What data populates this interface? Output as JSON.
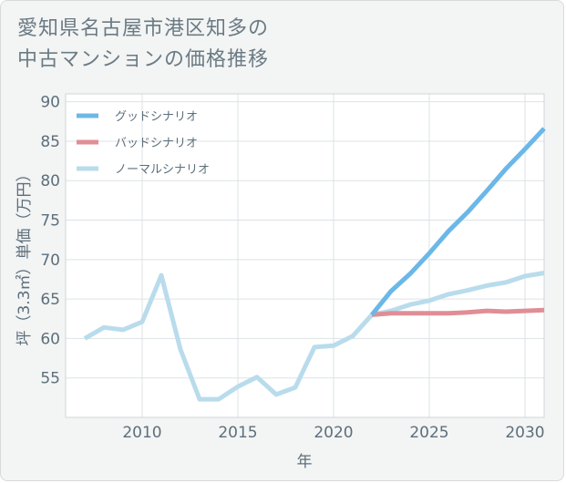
{
  "title_lines": [
    "愛知県名古屋市港区知多の",
    "中古マンションの価格推移"
  ],
  "chart_data": {
    "type": "line",
    "title": "愛知県名古屋市港区知多の中古マンションの価格推移",
    "xlabel": "年",
    "ylabel": "坪（3.3㎡）単価（万円）",
    "xlim": [
      2006,
      2031
    ],
    "ylim": [
      50,
      91
    ],
    "xticks": [
      2010,
      2015,
      2020,
      2025,
      2030
    ],
    "yticks": [
      55,
      60,
      65,
      70,
      75,
      80,
      85,
      90
    ],
    "grid": true,
    "legend_position": "top-left",
    "series": [
      {
        "name": "グッドシナリオ",
        "color": "#6bb8e8",
        "x": [
          2022,
          2023,
          2024,
          2025,
          2026,
          2027,
          2028,
          2029,
          2030,
          2031
        ],
        "y": [
          63.0,
          66.0,
          68.2,
          70.8,
          73.6,
          76.0,
          78.7,
          81.5,
          84.0,
          86.6
        ]
      },
      {
        "name": "バッドシナリオ",
        "color": "#e08e96",
        "x": [
          2022,
          2023,
          2024,
          2025,
          2026,
          2027,
          2028,
          2029,
          2030,
          2031
        ],
        "y": [
          63.0,
          63.2,
          63.2,
          63.2,
          63.2,
          63.3,
          63.5,
          63.4,
          63.5,
          63.6
        ]
      },
      {
        "name": "ノーマルシナリオ",
        "color": "#b9dcec",
        "x": [
          2007,
          2008,
          2009,
          2010,
          2011,
          2012,
          2013,
          2014,
          2015,
          2016,
          2017,
          2018,
          2019,
          2020,
          2021,
          2022,
          2023,
          2024,
          2025,
          2026,
          2027,
          2028,
          2029,
          2030,
          2031
        ],
        "y": [
          60.0,
          61.4,
          61.1,
          62.1,
          68.0,
          58.6,
          52.3,
          52.3,
          53.9,
          55.1,
          52.9,
          53.8,
          58.9,
          59.1,
          60.3,
          63.0,
          63.5,
          64.3,
          64.8,
          65.6,
          66.1,
          66.7,
          67.1,
          67.9,
          68.3
        ]
      }
    ]
  }
}
